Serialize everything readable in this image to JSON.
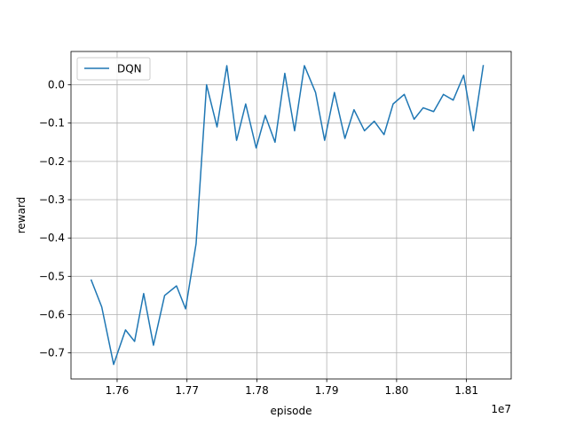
{
  "chart_data": {
    "type": "line",
    "title": "",
    "xlabel": "episode",
    "ylabel": "reward",
    "x_offset_label": "1e7",
    "xlim": [
      1.7534,
      1.8164
    ],
    "ylim": [
      -0.768,
      0.087
    ],
    "xticks": [
      1.76,
      1.77,
      1.78,
      1.79,
      1.8,
      1.81
    ],
    "xtick_labels": [
      "1.76",
      "1.77",
      "1.78",
      "1.79",
      "1.80",
      "1.81"
    ],
    "yticks": [
      0.0,
      -0.1,
      -0.2,
      -0.3,
      -0.4,
      -0.5,
      -0.6,
      -0.7
    ],
    "ytick_labels": [
      "0.0",
      "−0.1",
      "−0.2",
      "−0.3",
      "−0.4",
      "−0.5",
      "−0.6",
      "−0.7"
    ],
    "grid": true,
    "legend_position": "upper-left",
    "series": [
      {
        "name": "DQN",
        "color": "#1f77b4",
        "x": [
          1.7563,
          1.7578,
          1.7595,
          1.7612,
          1.7625,
          1.7638,
          1.7652,
          1.7668,
          1.7685,
          1.7698,
          1.7713,
          1.7728,
          1.7743,
          1.7757,
          1.7771,
          1.7784,
          1.7799,
          1.7812,
          1.7826,
          1.784,
          1.7854,
          1.7868,
          1.7884,
          1.7897,
          1.7911,
          1.7926,
          1.7939,
          1.7954,
          1.7968,
          1.7982,
          1.7995,
          1.8011,
          1.8025,
          1.8038,
          1.8053,
          1.8067,
          1.8081,
          1.8096,
          1.811,
          1.8124,
          1.8138
        ],
        "y": [
          -0.51,
          -0.58,
          -0.73,
          -0.64,
          -0.67,
          -0.545,
          -0.68,
          -0.55,
          -0.525,
          -0.585,
          -0.415,
          0.0,
          -0.11,
          0.05,
          -0.145,
          -0.05,
          -0.165,
          -0.08,
          -0.15,
          0.03,
          -0.12,
          0.05,
          -0.02,
          -0.145,
          -0.02,
          -0.14,
          -0.065,
          -0.12,
          -0.095,
          -0.13,
          -0.05,
          -0.025,
          -0.09,
          -0.06,
          -0.07,
          -0.025,
          -0.04,
          0.025,
          -0.12,
          0.05,
          null
        ]
      }
    ]
  }
}
